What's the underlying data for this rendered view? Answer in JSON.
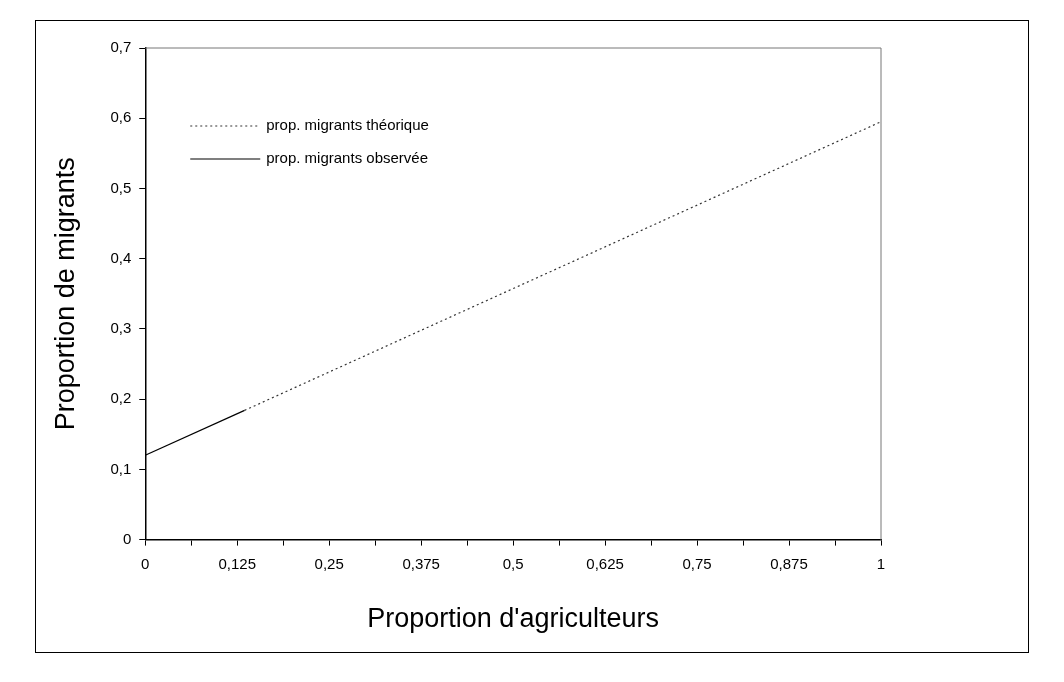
{
  "chart_data": {
    "type": "line",
    "xlabel": "Proportion d'agriculteurs",
    "ylabel": "Proportion de migrants",
    "xlim": [
      0,
      1
    ],
    "ylim": [
      0,
      0.7
    ],
    "xticks": [
      0,
      {
        "value": 0.0625,
        "label": null
      },
      {
        "value": 0.125,
        "label": "0,125"
      },
      {
        "value": 0.1875,
        "label": null
      },
      {
        "value": 0.25,
        "label": "0,25"
      },
      {
        "value": 0.3125,
        "label": null
      },
      {
        "value": 0.375,
        "label": "0,375"
      },
      {
        "value": 0.4375,
        "label": null
      },
      {
        "value": 0.5,
        "label": "0,5"
      },
      {
        "value": 0.5625,
        "label": null
      },
      {
        "value": 0.625,
        "label": "0,625"
      },
      {
        "value": 0.6875,
        "label": null
      },
      {
        "value": 0.75,
        "label": "0,75"
      },
      {
        "value": 0.8125,
        "label": null
      },
      {
        "value": 0.875,
        "label": "0,875"
      },
      {
        "value": 0.9375,
        "label": null
      },
      1
    ],
    "yticks": [
      0,
      {
        "value": 0.1,
        "label": "0,1"
      },
      {
        "value": 0.2,
        "label": "0,2"
      },
      {
        "value": 0.3,
        "label": "0,3"
      },
      {
        "value": 0.4,
        "label": "0,4"
      },
      {
        "value": 0.5,
        "label": "0,5"
      },
      {
        "value": 0.6,
        "label": "0,6"
      },
      {
        "value": 0.7,
        "label": "0,7"
      }
    ],
    "grid": false,
    "legend": "top left",
    "marker": "none",
    "series": [
      {
        "name": "prop. migrants théorique",
        "color": "#333333",
        "line_style": "dotted",
        "x": [
          0.135,
          1
        ],
        "values": [
          0.184,
          0.595
        ]
      },
      {
        "name": "prop. migrants observée",
        "color": "#000000",
        "line_style": "solid",
        "x": [
          0,
          0.135
        ],
        "values": [
          0.12,
          0.184
        ]
      }
    ]
  }
}
